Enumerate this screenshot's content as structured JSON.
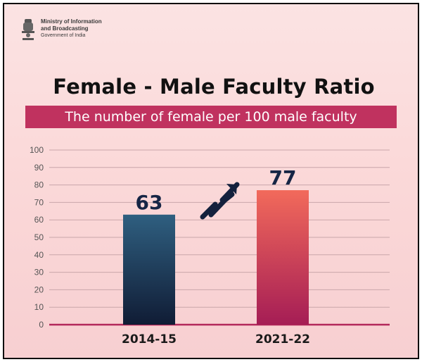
{
  "header": {
    "ministry_line1": "Ministry of Information",
    "ministry_line2": "and Broadcasting",
    "government": "Government of India"
  },
  "chart_data": {
    "type": "bar",
    "title": "Female - Male Faculty Ratio",
    "subtitle": "The number of female per 100 male faculty",
    "categories": [
      "2014-15",
      "2021-22"
    ],
    "values": [
      63,
      77
    ],
    "data_labels": [
      "63",
      "77"
    ],
    "ylim": [
      0,
      100
    ],
    "yticks": [
      0,
      10,
      20,
      30,
      40,
      50,
      60,
      70,
      80,
      90,
      100
    ],
    "grid": true,
    "bar_colors": [
      "#1f3f5e",
      "#f0665a"
    ],
    "annotation": "upward-arrow"
  },
  "colors": {
    "accent": "#c0325f",
    "background": "#fbdcdc"
  }
}
